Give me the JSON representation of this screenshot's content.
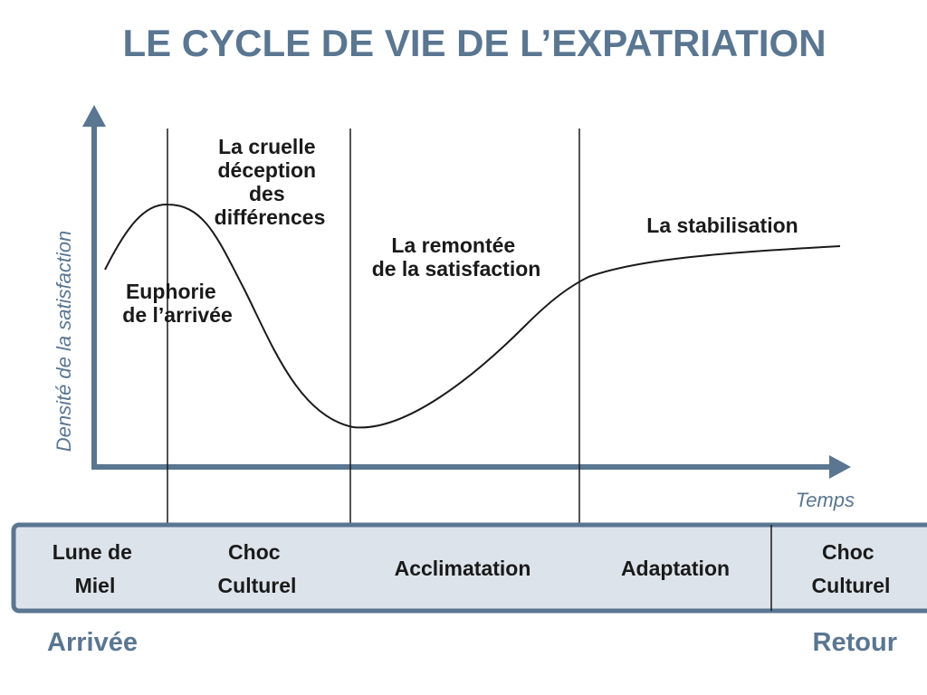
{
  "title": "LE CYCLE DE VIE DE L’EXPATRIATION",
  "y_axis_label": "Densité de la satisfaction",
  "x_axis_label": "Temps",
  "curve_labels": {
    "euphorie": [
      "Euphorie",
      "de l’arrivée"
    ],
    "deception": [
      "La cruelle",
      "déception",
      "des",
      "différences"
    ],
    "remontee": [
      "La remontée",
      "de la satisfaction"
    ],
    "stabilisation": [
      "La stabilisation"
    ]
  },
  "phases": [
    {
      "label": [
        "Lune de",
        "Miel"
      ]
    },
    {
      "label": [
        "Choc",
        "Culturel"
      ]
    },
    {
      "label": [
        "Acclimatation"
      ]
    },
    {
      "label": [
        "Adaptation"
      ]
    },
    {
      "label": [
        "Choc",
        "Culturel"
      ]
    }
  ],
  "start_label": "Arrivée",
  "end_label": "Retour",
  "colors": {
    "accent": "#5a7691",
    "bar_fill": "#dde3ea",
    "line": "#1a1a1a"
  }
}
